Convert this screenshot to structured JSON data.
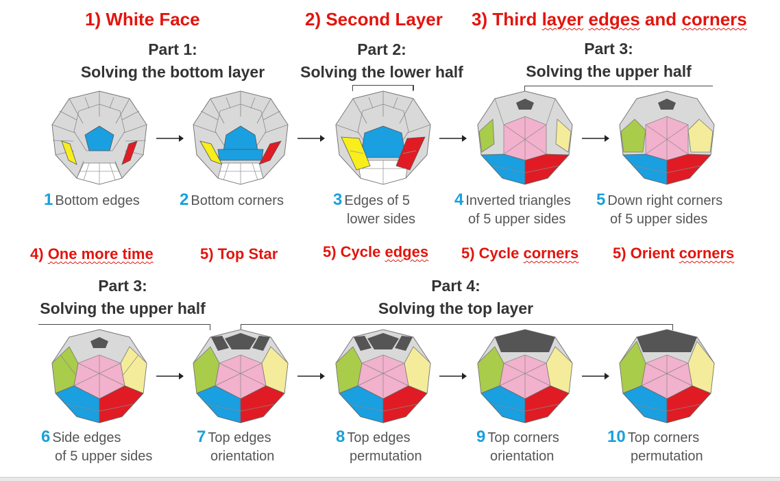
{
  "headings": {
    "h1": "1) White Face",
    "h2_num": "2) ",
    "h2": "Second Layer",
    "h3_num": "3) Third ",
    "h3_a": "layer",
    "h3_sp": " ",
    "h3_b": "edges",
    "h3_c": " and ",
    "h3_d": "corners",
    "h4_num": "4) ",
    "h4": "One more time",
    "h5": "5) Top Star",
    "h6_num": "5) Cycle ",
    "h6": "edges",
    "h7_num": "5) Cycle ",
    "h7": "corners",
    "h8_num": "5) Orient ",
    "h8": "corners"
  },
  "parts": {
    "p1_title": "Part 1:",
    "p1_sub": "Solving the bottom layer",
    "p2_title": "Part 2:",
    "p2_sub": "Solving the lower half",
    "p3_title": "Part 3:",
    "p3_sub": "Solving the upper half",
    "p3b_title": "Part 3:",
    "p3b_sub": "Solving the upper half",
    "p4_title": "Part 4:",
    "p4_sub": "Solving the top layer"
  },
  "steps": [
    {
      "n": "1",
      "l1": "Bottom edges",
      "l2": ""
    },
    {
      "n": "2",
      "l1": "Bottom corners",
      "l2": ""
    },
    {
      "n": "3",
      "l1": "Edges of  5",
      "l2": "lower sides"
    },
    {
      "n": "4",
      "l1": "Inverted triangles",
      "l2": "of 5 upper sides"
    },
    {
      "n": "5",
      "l1": "Down right corners",
      "l2": "of 5 upper sides"
    },
    {
      "n": "6",
      "l1": "Side edges",
      "l2": "of 5 upper sides"
    },
    {
      "n": "7",
      "l1": "Top edges",
      "l2": "orientation"
    },
    {
      "n": "8",
      "l1": "Top edges",
      "l2": "permutation"
    },
    {
      "n": "9",
      "l1": "Top corners",
      "l2": "orientation"
    },
    {
      "n": "10",
      "l1": "Top corners",
      "l2": "permutation"
    }
  ],
  "colors": {
    "heading_red": "#e3140d",
    "step_blue": "#19a0dc",
    "part_text": "#333333",
    "sticker_gray": "#d9d9d9",
    "blue": "#1a9fe0",
    "red": "#e01b24",
    "yellow": "#f7ee1c",
    "green": "#a9cc4a",
    "pale_yellow": "#f4ec9a",
    "pink": "#f2b1cc",
    "dark": "#555555"
  }
}
